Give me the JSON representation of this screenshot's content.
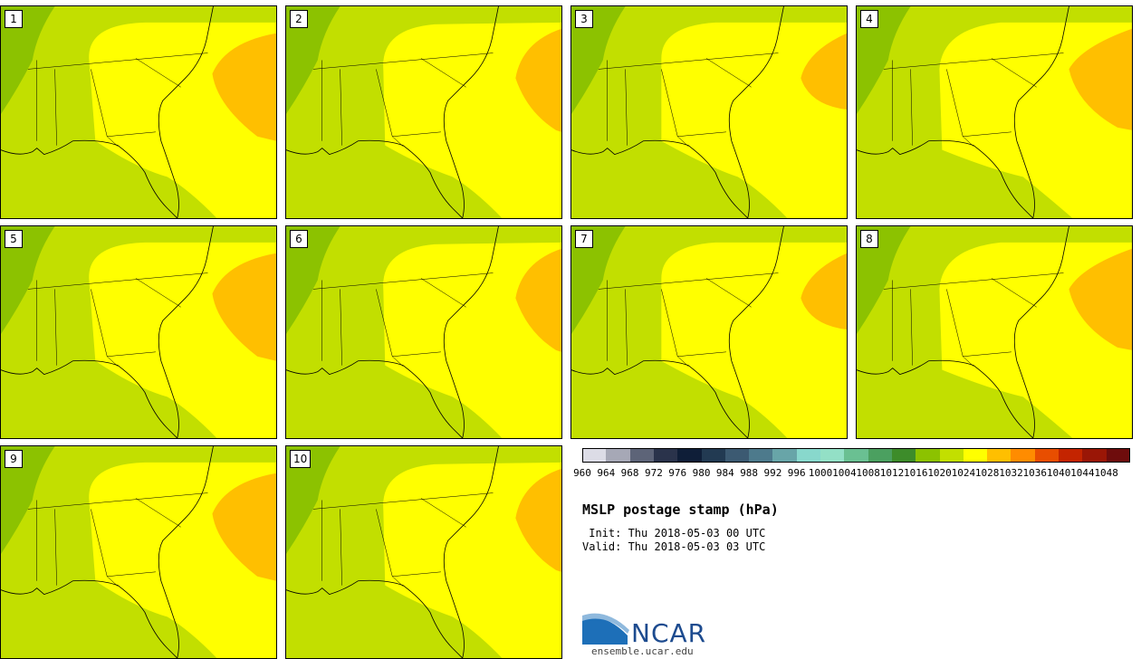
{
  "panels": [
    {
      "label": "1"
    },
    {
      "label": "2"
    },
    {
      "label": "3"
    },
    {
      "label": "4"
    },
    {
      "label": "5"
    },
    {
      "label": "6"
    },
    {
      "label": "7"
    },
    {
      "label": "8"
    },
    {
      "label": "9"
    },
    {
      "label": "10"
    }
  ],
  "colorbar": {
    "labels": [
      "960",
      "964",
      "968",
      "972",
      "976",
      "980",
      "984",
      "988",
      "992",
      "996",
      "1000",
      "1004",
      "1008",
      "1012",
      "1016",
      "1020",
      "1024",
      "1028",
      "1032",
      "1036",
      "1040",
      "1044",
      "1048"
    ],
    "colors": [
      "#dcdce6",
      "#a6a8b6",
      "#5d6478",
      "#2a334b",
      "#0f1e38",
      "#223a52",
      "#3c5a72",
      "#4d7a8c",
      "#68a5a8",
      "#88d8cc",
      "#93e0c6",
      "#6ac092",
      "#4ba060",
      "#3d8c2a",
      "#8cc200",
      "#c2df00",
      "#ffff00",
      "#ffbf00",
      "#ff8c00",
      "#e84e00",
      "#c42400",
      "#9a1606",
      "#6e0c0c"
    ]
  },
  "title": "MSLP postage stamp (hPa)",
  "init_text": " Init: Thu 2018-05-03 00 UTC",
  "valid_text": "Valid: Thu 2018-05-03 03 UTC",
  "logo": {
    "text": "NCAR",
    "url_text": "ensemble.ucar.edu"
  },
  "map_colors": {
    "land_low": "#8cc200",
    "mid": "#c2df00",
    "high": "#ffff00",
    "peak": "#ffbf00"
  }
}
